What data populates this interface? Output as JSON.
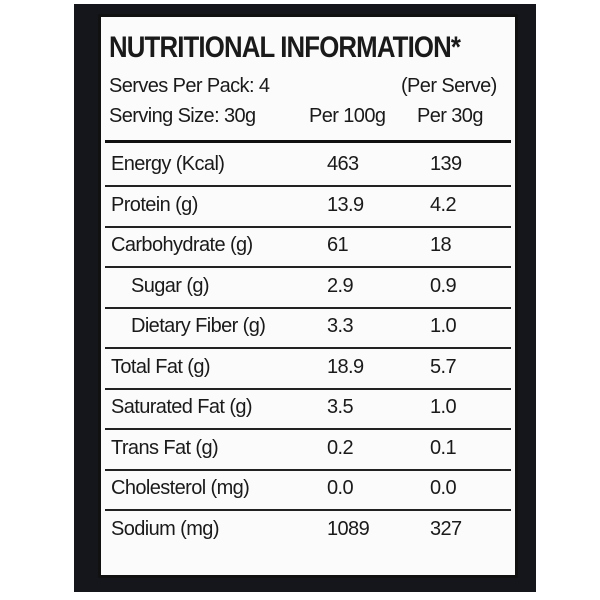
{
  "header": {
    "title": "NUTRITIONAL INFORMATION*",
    "serves": "Serves Per Pack: 4",
    "serving_size": "Serving Size: 30g",
    "per_serve": "(Per Serve)",
    "per_100g": "Per 100g",
    "per_30g": "Per 30g"
  },
  "table": {
    "rows": [
      [
        "Energy (Kcal)",
        "463",
        "139"
      ],
      [
        "Protein (g)",
        "13.9",
        "4.2"
      ],
      [
        "Carbohydrate (g)",
        "61",
        "18"
      ],
      [
        "Sugar (g)",
        "2.9",
        "0.9"
      ],
      [
        "Dietary Fiber (g)",
        "3.3",
        "1.0"
      ],
      [
        "Total Fat (g)",
        "18.9",
        "5.7"
      ],
      [
        "Saturated Fat (g)",
        "3.5",
        "1.0"
      ],
      [
        "Trans Fat (g)",
        "0.2",
        "0.1"
      ],
      [
        "Cholesterol (mg)",
        "0.0",
        "0.0"
      ],
      [
        "Sodium (mg)",
        "1089",
        "327"
      ]
    ]
  }
}
